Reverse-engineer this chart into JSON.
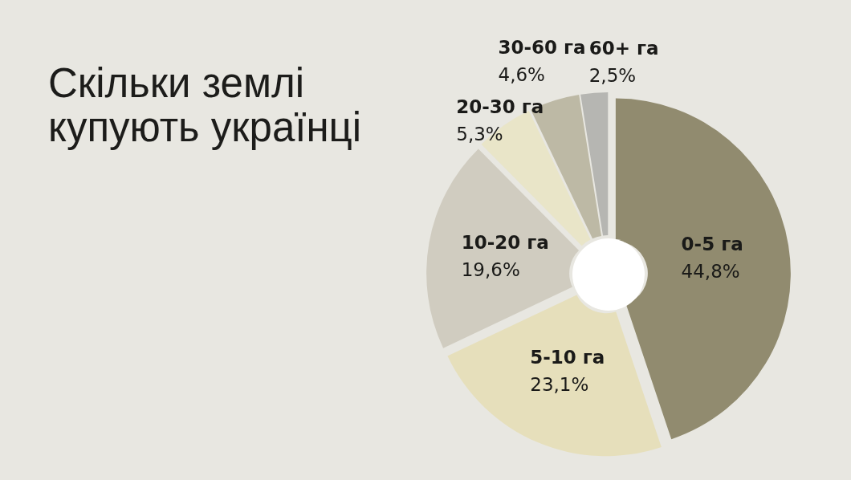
{
  "chart_data": {
    "type": "donut",
    "title": "Скільки землі купують українці",
    "categories": [
      "0-5 га",
      "5-10 га",
      "10-20 га",
      "20-30 га",
      "30-60 га",
      "60+ га"
    ],
    "values": [
      44.8,
      23.1,
      19.6,
      5.3,
      4.6,
      2.5
    ],
    "colors": [
      "#918b6f",
      "#e6dfbb",
      "#d0ccc0",
      "#e9e5c8",
      "#bdb9a5",
      "#b6b6b2"
    ],
    "value_labels": [
      "44,8%",
      "23,1%",
      "19,6%",
      "5,3%",
      "4,6%",
      "2,5%"
    ]
  }
}
